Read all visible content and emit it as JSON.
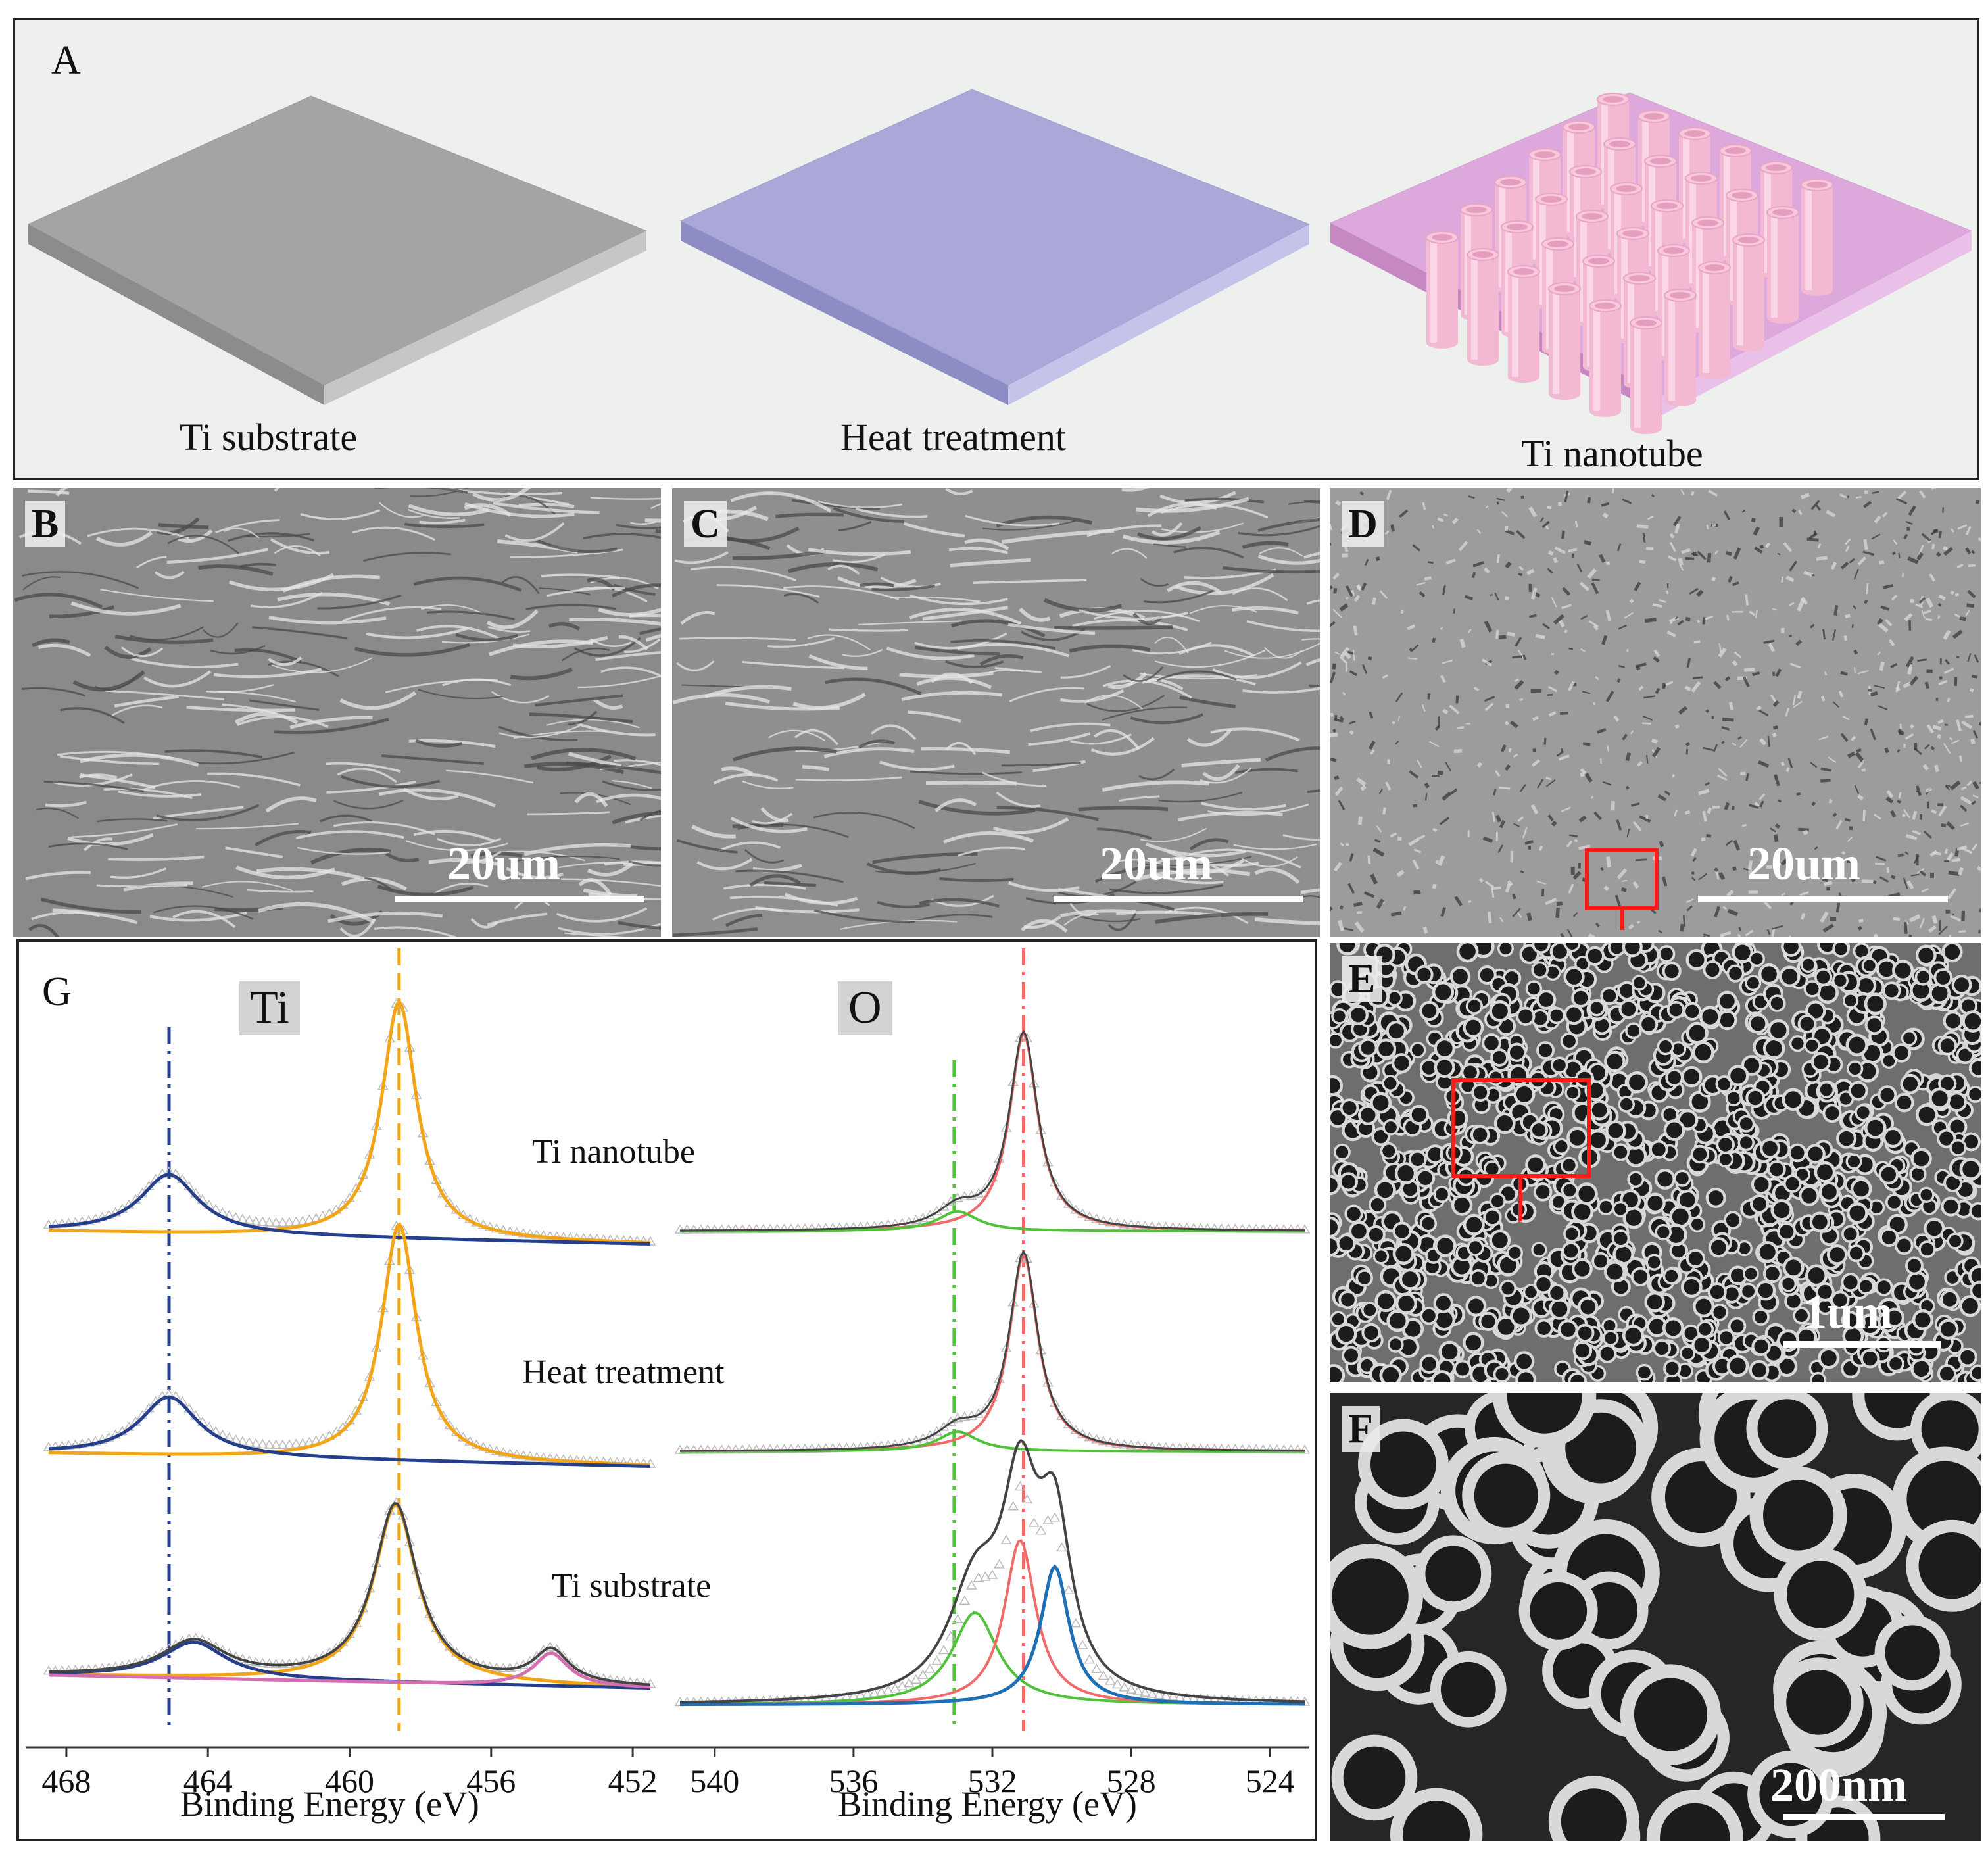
{
  "panel_a": {
    "label": "A",
    "captions": [
      "Ti substrate",
      "Heat treatment",
      "Ti nanotube"
    ]
  },
  "sem_panels": {
    "b": {
      "label": "B",
      "scale": "20um"
    },
    "c": {
      "label": "C",
      "scale": "20um"
    },
    "d": {
      "label": "D",
      "scale": "20um"
    },
    "e": {
      "label": "E",
      "scale": "1um"
    },
    "f": {
      "label": "F",
      "scale": "200nm"
    }
  },
  "panel_g": {
    "label": "G",
    "element_left": "Ti",
    "element_right": "O",
    "curve_labels": [
      "Ti nanotube",
      "Heat treatment",
      "Ti substrate"
    ],
    "xlabel_left": "Binding Energy (eV)",
    "xlabel_right": "Binding Energy (eV)",
    "ticks_left": [
      "468",
      "464",
      "460",
      "456",
      "452"
    ],
    "ticks_right": [
      "540",
      "536",
      "532",
      "528",
      "524"
    ]
  },
  "chart_data": [
    {
      "type": "line",
      "element": "Ti",
      "xlabel": "Binding Energy (eV)",
      "xlim": [
        468.5,
        451.5
      ],
      "x_ticks": [
        468,
        464,
        460,
        456,
        452
      ],
      "reference_lines": [
        465.1,
        458.6
      ],
      "series": [
        {
          "name": "Ti nanotube",
          "peaks": [
            465.1,
            458.6
          ]
        },
        {
          "name": "Heat treatment",
          "peaks": [
            465.1,
            458.6
          ]
        },
        {
          "name": "Ti substrate",
          "peaks": [
            464.4,
            458.7,
            454.3
          ]
        }
      ]
    },
    {
      "type": "line",
      "element": "O",
      "xlabel": "Binding Energy (eV)",
      "xlim": [
        541,
        523
      ],
      "x_ticks": [
        540,
        536,
        532,
        528,
        524
      ],
      "reference_lines": [
        533.1,
        531.1
      ],
      "series": [
        {
          "name": "Ti nanotube",
          "peaks": [
            531.1,
            533.0
          ]
        },
        {
          "name": "Heat treatment",
          "peaks": [
            531.1,
            533.0
          ]
        },
        {
          "name": "Ti substrate",
          "peaks": [
            532.5,
            531.2,
            530.2
          ]
        }
      ]
    }
  ],
  "colors": {
    "blue_dash": "#1f4e9c",
    "orange": "#f2a516",
    "red": "#f06a6a",
    "green": "#4fc23a",
    "pink": "#d46fb1",
    "navy": "#253f8c",
    "scale_box": "#ff1a1a"
  }
}
